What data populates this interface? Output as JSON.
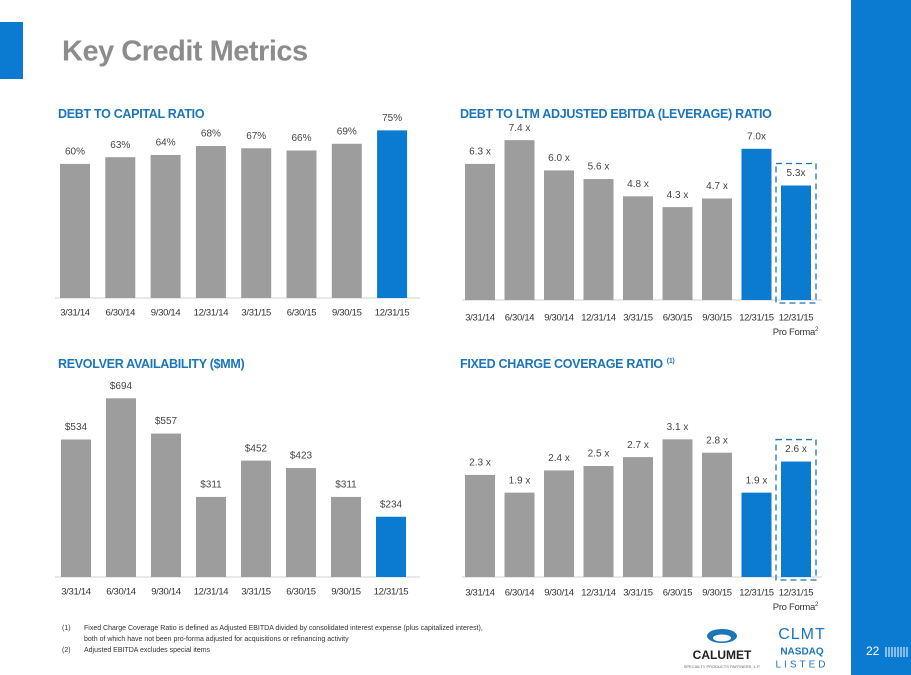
{
  "slide": {
    "title": "Key Credit Metrics",
    "page_number": "22"
  },
  "chart_data": [
    {
      "type": "bar",
      "title": "DEBT TO CAPITAL RATIO",
      "categories": [
        "3/31/14",
        "6/30/14",
        "9/30/14",
        "12/31/14",
        "3/31/15",
        "6/30/15",
        "9/30/15",
        "12/31/15"
      ],
      "values": [
        60,
        63,
        64,
        68,
        67,
        66,
        69,
        75
      ],
      "value_labels": [
        "60%",
        "63%",
        "64%",
        "68%",
        "67%",
        "66%",
        "69%",
        "75%"
      ],
      "colors": [
        "#9d9d9d",
        "#9d9d9d",
        "#9d9d9d",
        "#9d9d9d",
        "#9d9d9d",
        "#9d9d9d",
        "#9d9d9d",
        "#0a7bd0"
      ]
    },
    {
      "type": "bar",
      "title": "DEBT TO LTM ADJUSTED EBITDA (LEVERAGE) RATIO",
      "categories": [
        "3/31/14",
        "6/30/14",
        "9/30/14",
        "12/31/14",
        "3/31/15",
        "6/30/15",
        "9/30/15",
        "12/31/15",
        "12/31/15"
      ],
      "values": [
        6.3,
        7.4,
        6.0,
        5.6,
        4.8,
        4.3,
        4.7,
        7.0,
        5.3
      ],
      "value_labels": [
        "6.3 x",
        "7.4 x",
        "6.0 x",
        "5.6 x",
        "4.8 x",
        "4.3 x",
        "4.7 x",
        "7.0x",
        "5.3x"
      ],
      "colors": [
        "#9d9d9d",
        "#9d9d9d",
        "#9d9d9d",
        "#9d9d9d",
        "#9d9d9d",
        "#9d9d9d",
        "#9d9d9d",
        "#0a7bd0",
        "#0a7bd0"
      ],
      "annotation": "Pro Forma",
      "annotation_note": "2"
    },
    {
      "type": "bar",
      "title": "REVOLVER AVAILABILITY ($MM)",
      "categories": [
        "3/31/14",
        "6/30/14",
        "9/30/14",
        "12/31/14",
        "3/31/15",
        "6/30/15",
        "9/30/15",
        "12/31/15"
      ],
      "values": [
        534,
        694,
        557,
        311,
        452,
        423,
        311,
        234
      ],
      "value_labels": [
        "$534",
        "$694",
        "$557",
        "$311",
        "$452",
        "$423",
        "$311",
        "$234"
      ],
      "colors": [
        "#9d9d9d",
        "#9d9d9d",
        "#9d9d9d",
        "#9d9d9d",
        "#9d9d9d",
        "#9d9d9d",
        "#9d9d9d",
        "#0a7bd0"
      ]
    },
    {
      "type": "bar",
      "title": "FIXED CHARGE COVERAGE RATIO",
      "title_note": "(1)",
      "categories": [
        "3/31/14",
        "6/30/14",
        "9/30/14",
        "12/31/14",
        "3/31/15",
        "6/30/15",
        "9/30/15",
        "12/31/15",
        "12/31/15"
      ],
      "values": [
        2.3,
        1.9,
        2.4,
        2.5,
        2.7,
        3.1,
        2.8,
        1.9,
        2.6
      ],
      "value_labels": [
        "2.3 x",
        "1.9 x",
        "2.4 x",
        "2.5 x",
        "2.7 x",
        "3.1 x",
        "2.8 x",
        "1.9 x",
        "2.6 x"
      ],
      "colors": [
        "#9d9d9d",
        "#9d9d9d",
        "#9d9d9d",
        "#9d9d9d",
        "#9d9d9d",
        "#9d9d9d",
        "#9d9d9d",
        "#0a7bd0",
        "#0a7bd0"
      ],
      "annotation": "Pro Forma",
      "annotation_note": "2"
    }
  ],
  "footnotes": [
    {
      "marker": "(1)",
      "lines": [
        "Fixed Charge Coverage Ratio is defined as Adjusted EBITDA divided by consolidated interest expense (plus capitalized interest),",
        "both of which have not been pro-forma adjusted for acquisitions or refinancing activity"
      ]
    },
    {
      "marker": "(2)",
      "lines": [
        "Adjusted EBITDA excludes special items"
      ]
    }
  ],
  "logos": {
    "company": "CALUMET",
    "company_subtitle": "SPECIALTY PRODUCTS PARTNERS, L.P.",
    "ticker": "CLMT",
    "exchange": "NASDAQ",
    "listed": "LISTED"
  }
}
